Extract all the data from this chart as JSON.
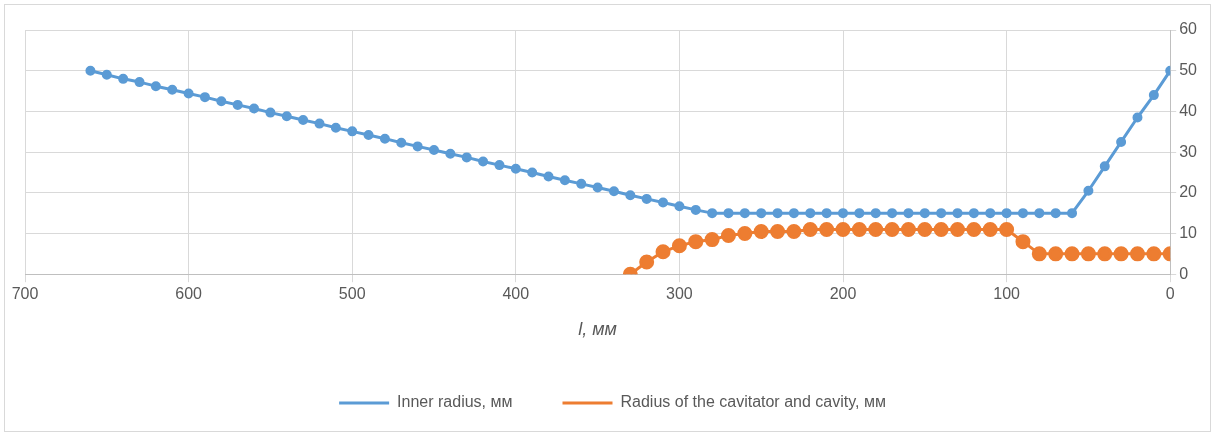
{
  "chart_data": {
    "type": "line",
    "xlabel": "l, мм",
    "xlim": [
      700,
      0
    ],
    "xticks": [
      700,
      600,
      500,
      400,
      300,
      200,
      100,
      0
    ],
    "ylim": [
      0,
      60
    ],
    "yticks": [
      0,
      10,
      20,
      30,
      40,
      50,
      60
    ],
    "grid": true,
    "legend": "bottom",
    "marker": "circle",
    "series": [
      {
        "name": "Inner radius, мм",
        "color": "#5b9bd5",
        "x": [
          660,
          650,
          640,
          630,
          620,
          610,
          600,
          590,
          580,
          570,
          560,
          550,
          540,
          530,
          520,
          510,
          500,
          490,
          480,
          470,
          460,
          450,
          440,
          430,
          420,
          410,
          400,
          390,
          380,
          370,
          360,
          350,
          340,
          330,
          320,
          310,
          300,
          290,
          280,
          270,
          260,
          250,
          240,
          230,
          220,
          210,
          200,
          190,
          180,
          170,
          160,
          150,
          140,
          130,
          120,
          110,
          100,
          90,
          80,
          70,
          60,
          50,
          40,
          30,
          20,
          10,
          0
        ],
        "values": [
          50,
          49,
          48,
          47.2,
          46.2,
          45.3,
          44.4,
          43.5,
          42.5,
          41.6,
          40.7,
          39.7,
          38.8,
          37.9,
          37,
          36,
          35.1,
          34.2,
          33.3,
          32.3,
          31.4,
          30.5,
          29.6,
          28.7,
          27.7,
          26.8,
          25.9,
          25,
          24,
          23.1,
          22.2,
          21.3,
          20.4,
          19.4,
          18.5,
          17.6,
          16.7,
          15.8,
          15,
          15,
          15,
          15,
          15,
          15,
          15,
          15,
          15,
          15,
          15,
          15,
          15,
          15,
          15,
          15,
          15,
          15,
          15,
          15,
          15,
          15,
          15,
          20.5,
          26.5,
          32.5,
          38.5,
          44,
          50
        ]
      },
      {
        "name": "Radius of the cavitator and cavity, мм",
        "color": "#ed7d31",
        "x": [
          330,
          320,
          310,
          300,
          290,
          280,
          270,
          260,
          250,
          240,
          230,
          220,
          210,
          200,
          190,
          180,
          170,
          160,
          150,
          140,
          130,
          120,
          110,
          100,
          90,
          80,
          70,
          60,
          50,
          40,
          30,
          20,
          10,
          0
        ],
        "values": [
          0,
          3,
          5.5,
          7,
          8,
          8.5,
          9.5,
          10,
          10.5,
          10.5,
          10.5,
          11,
          11,
          11,
          11,
          11,
          11,
          11,
          11,
          11,
          11,
          11,
          11,
          11,
          8,
          5,
          5,
          5,
          5,
          5,
          5,
          5,
          5,
          5
        ]
      }
    ]
  }
}
